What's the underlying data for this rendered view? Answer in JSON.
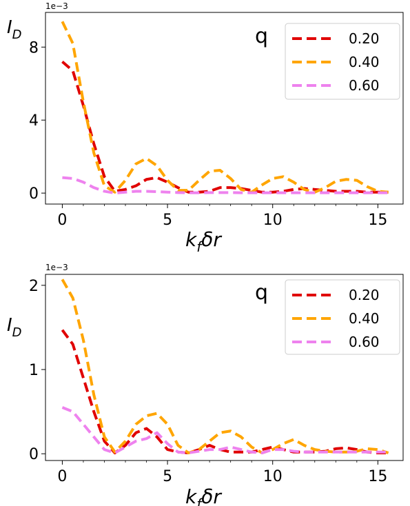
{
  "chart_data": [
    {
      "type": "line",
      "ylabel": "I_D",
      "xlabel": "k_f δr",
      "offset_text": "1e−3",
      "legend_title": "q",
      "legend_position": "top-right",
      "xlim": [
        -0.8,
        16.2
      ],
      "ylim": [
        -0.6,
        9.9
      ],
      "xticks": [
        0,
        5,
        10,
        15
      ],
      "yticks": [
        0,
        4,
        8
      ],
      "x": [
        0,
        0.5,
        1,
        1.5,
        2,
        2.5,
        3,
        3.5,
        4,
        4.5,
        5,
        5.5,
        6,
        6.5,
        7,
        7.5,
        8,
        8.5,
        9,
        9.5,
        10,
        10.5,
        11,
        11.5,
        12,
        12.5,
        13,
        13.5,
        14,
        14.5,
        15,
        15.5
      ],
      "series": [
        {
          "name": "0.20",
          "color": "#e00000",
          "values": [
            7.2,
            6.7,
            4.8,
            2.7,
            0.9,
            0.1,
            0.2,
            0.4,
            0.75,
            0.85,
            0.6,
            0.3,
            0.05,
            0.05,
            0.1,
            0.3,
            0.3,
            0.25,
            0.15,
            0.05,
            0.05,
            0.1,
            0.2,
            0.25,
            0.2,
            0.15,
            0.1,
            0.1,
            0.1,
            0.05,
            0.05,
            0.05
          ]
        },
        {
          "name": "0.40",
          "color": "#ffa500",
          "values": [
            9.4,
            8.2,
            5.0,
            2.2,
            0.4,
            0.05,
            0.7,
            1.6,
            1.9,
            1.5,
            0.7,
            0.15,
            0.15,
            0.7,
            1.2,
            1.25,
            0.8,
            0.2,
            0.05,
            0.45,
            0.8,
            0.9,
            0.6,
            0.2,
            0.05,
            0.3,
            0.65,
            0.75,
            0.7,
            0.35,
            0.1,
            0.05
          ]
        },
        {
          "name": "0.60",
          "color": "#ee82ee",
          "values": [
            0.85,
            0.8,
            0.6,
            0.3,
            0.1,
            0.0,
            0.05,
            0.1,
            0.1,
            0.08,
            0.05,
            0.03,
            0.02,
            0.02,
            0.03,
            0.03,
            0.03,
            0.02,
            0.02,
            0.02,
            0.02,
            0.02,
            0.02,
            0.02,
            0.02,
            0.02,
            0.02,
            0.02,
            0.02,
            0.02,
            0.02,
            0.02
          ]
        }
      ]
    },
    {
      "type": "line",
      "ylabel": "I_D",
      "xlabel": "k_f δr",
      "offset_text": "1e−3",
      "legend_title": "q",
      "legend_position": "top-right",
      "xlim": [
        -0.8,
        16.2
      ],
      "ylim": [
        -0.08,
        2.13
      ],
      "xticks": [
        0,
        5,
        10,
        15
      ],
      "yticks": [
        0,
        1,
        2
      ],
      "x": [
        0,
        0.5,
        1,
        1.5,
        2,
        2.5,
        3,
        3.5,
        4,
        4.5,
        5,
        5.5,
        6,
        6.5,
        7,
        7.5,
        8,
        8.5,
        9,
        9.5,
        10,
        10.5,
        11,
        11.5,
        12,
        12.5,
        13,
        13.5,
        14,
        14.5,
        15,
        15.5
      ],
      "series": [
        {
          "name": "0.20",
          "color": "#e00000",
          "values": [
            1.47,
            1.3,
            0.9,
            0.5,
            0.15,
            0.01,
            0.1,
            0.25,
            0.3,
            0.2,
            0.05,
            0.02,
            0.01,
            0.05,
            0.1,
            0.05,
            0.02,
            0.02,
            0.02,
            0.05,
            0.08,
            0.05,
            0.02,
            0.02,
            0.02,
            0.03,
            0.06,
            0.07,
            0.05,
            0.02,
            0.01,
            0.01
          ]
        },
        {
          "name": "0.40",
          "color": "#ffa500",
          "values": [
            2.07,
            1.85,
            1.35,
            0.7,
            0.2,
            0.02,
            0.15,
            0.35,
            0.45,
            0.48,
            0.35,
            0.1,
            0.01,
            0.05,
            0.15,
            0.25,
            0.27,
            0.2,
            0.08,
            0.01,
            0.05,
            0.12,
            0.17,
            0.1,
            0.05,
            0.03,
            0.02,
            0.02,
            0.03,
            0.06,
            0.05,
            0.01
          ]
        },
        {
          "name": "0.60",
          "color": "#ee82ee",
          "values": [
            0.55,
            0.5,
            0.35,
            0.2,
            0.05,
            0.01,
            0.08,
            0.15,
            0.18,
            0.25,
            0.12,
            0.02,
            0.01,
            0.03,
            0.05,
            0.05,
            0.08,
            0.05,
            0.02,
            0.01,
            0.05,
            0.05,
            0.03,
            0.02,
            0.02,
            0.02,
            0.02,
            0.02,
            0.02,
            0.02,
            0.02,
            0.02
          ]
        }
      ]
    }
  ]
}
